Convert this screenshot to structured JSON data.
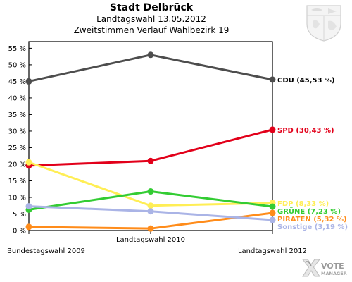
{
  "header": {
    "title": "Stadt Delbrück",
    "subtitle1": "Landtagswahl 13.05.2012",
    "subtitle2": "Zweitstimmen Verlauf Wahlbezirk 19"
  },
  "logo": {
    "line1": "VOTE",
    "line2": "MANAGER"
  },
  "chart_data": {
    "type": "line",
    "x": [
      "Bundestagswahl 2009",
      "Landtagswahl 2010",
      "Landtagswahl 2012"
    ],
    "ylim": [
      0,
      57
    ],
    "yticks": [
      0,
      5,
      10,
      15,
      20,
      25,
      30,
      35,
      40,
      45,
      50,
      55
    ],
    "ytick_labels": [
      "0 %",
      "5 %",
      "10 %",
      "15 %",
      "20 %",
      "25 %",
      "30 %",
      "35 %",
      "40 %",
      "45 %",
      "50 %",
      "55 %"
    ],
    "grid": false,
    "series": [
      {
        "name": "CDU",
        "color": "#4d4d4d",
        "values": [
          45.0,
          53.0,
          45.53
        ],
        "end_label": "CDU (45,53 %)",
        "label_color": "#000000"
      },
      {
        "name": "SPD",
        "color": "#e2001a",
        "values": [
          19.6,
          21.0,
          30.43
        ],
        "end_label": "SPD (30,43 %)",
        "label_color": "#e2001a"
      },
      {
        "name": "FDP",
        "color": "#ffee55",
        "values": [
          20.6,
          7.5,
          8.33
        ],
        "end_label": "FDP (8,33 %)",
        "label_color": "#ffee55"
      },
      {
        "name": "GRÜNE",
        "color": "#33cc33",
        "values": [
          6.3,
          11.8,
          7.23
        ],
        "end_label": "GRÜNE (7,23 %)",
        "label_color": "#33cc33"
      },
      {
        "name": "PIRATEN",
        "color": "#ff8c1a",
        "values": [
          1.1,
          0.6,
          5.32
        ],
        "end_label": "PIRATEN (5,32 %)",
        "label_color": "#ff8c1a"
      },
      {
        "name": "Sonstige",
        "color": "#aab4e6",
        "values": [
          7.3,
          5.8,
          3.19
        ],
        "end_label": "Sonstige (3,19 %)",
        "label_color": "#aab4e6"
      }
    ]
  }
}
